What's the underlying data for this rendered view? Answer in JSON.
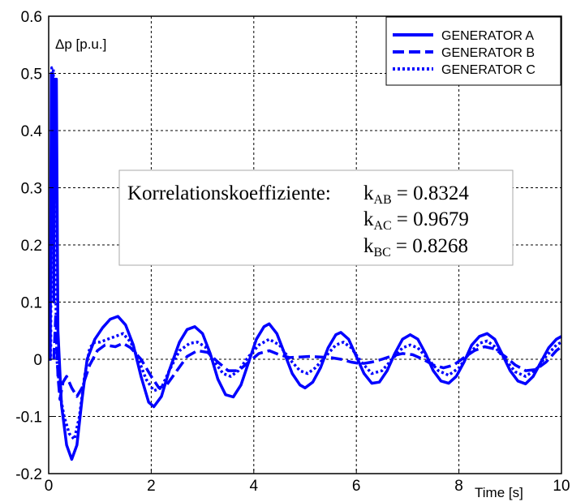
{
  "chart_data": {
    "type": "line",
    "title": "",
    "ylabel": "Δp [p.u.]",
    "xlabel": "Time [s]",
    "xlim": [
      0,
      10
    ],
    "ylim": [
      -0.2,
      0.6
    ],
    "xticks": [
      0,
      2,
      4,
      6,
      8,
      10
    ],
    "yticks": [
      -0.2,
      -0.1,
      0,
      0.1,
      0.2,
      0.3,
      0.4,
      0.5,
      0.6
    ],
    "grid": true,
    "legend_position": "top-right",
    "series": [
      {
        "name": "GENERATOR A",
        "color": "#0000ff",
        "style": "solid",
        "points": [
          [
            0,
            0
          ],
          [
            0.03,
            0
          ],
          [
            0.05,
            0.5
          ],
          [
            0.08,
            0.5
          ],
          [
            0.1,
            0.1
          ],
          [
            0.12,
            0.49
          ],
          [
            0.15,
            0.49
          ],
          [
            0.18,
            0.05
          ],
          [
            0.25,
            -0.08
          ],
          [
            0.35,
            -0.15
          ],
          [
            0.45,
            -0.175
          ],
          [
            0.55,
            -0.15
          ],
          [
            0.65,
            -0.07
          ],
          [
            0.75,
            0.0
          ],
          [
            0.9,
            0.035
          ],
          [
            1.05,
            0.055
          ],
          [
            1.2,
            0.07
          ],
          [
            1.35,
            0.075
          ],
          [
            1.5,
            0.06
          ],
          [
            1.65,
            0.025
          ],
          [
            1.8,
            -0.03
          ],
          [
            1.95,
            -0.075
          ],
          [
            2.05,
            -0.083
          ],
          [
            2.2,
            -0.065
          ],
          [
            2.35,
            -0.02
          ],
          [
            2.55,
            0.03
          ],
          [
            2.7,
            0.052
          ],
          [
            2.85,
            0.057
          ],
          [
            3.0,
            0.045
          ],
          [
            3.15,
            0.01
          ],
          [
            3.3,
            -0.035
          ],
          [
            3.45,
            -0.062
          ],
          [
            3.6,
            -0.066
          ],
          [
            3.75,
            -0.045
          ],
          [
            3.9,
            -0.005
          ],
          [
            4.05,
            0.035
          ],
          [
            4.2,
            0.057
          ],
          [
            4.3,
            0.062
          ],
          [
            4.45,
            0.045
          ],
          [
            4.6,
            0.01
          ],
          [
            4.75,
            -0.025
          ],
          [
            4.9,
            -0.045
          ],
          [
            5.0,
            -0.05
          ],
          [
            5.15,
            -0.04
          ],
          [
            5.3,
            -0.015
          ],
          [
            5.45,
            0.02
          ],
          [
            5.6,
            0.043
          ],
          [
            5.7,
            0.047
          ],
          [
            5.85,
            0.035
          ],
          [
            6.0,
            0.005
          ],
          [
            6.15,
            -0.025
          ],
          [
            6.3,
            -0.042
          ],
          [
            6.45,
            -0.04
          ],
          [
            6.6,
            -0.02
          ],
          [
            6.75,
            0.01
          ],
          [
            6.9,
            0.035
          ],
          [
            7.05,
            0.043
          ],
          [
            7.2,
            0.035
          ],
          [
            7.35,
            0.01
          ],
          [
            7.5,
            -0.02
          ],
          [
            7.65,
            -0.038
          ],
          [
            7.8,
            -0.042
          ],
          [
            7.95,
            -0.03
          ],
          [
            8.1,
            -0.005
          ],
          [
            8.25,
            0.025
          ],
          [
            8.4,
            0.04
          ],
          [
            8.55,
            0.045
          ],
          [
            8.7,
            0.035
          ],
          [
            8.85,
            0.008
          ],
          [
            9.0,
            -0.02
          ],
          [
            9.15,
            -0.038
          ],
          [
            9.3,
            -0.043
          ],
          [
            9.45,
            -0.03
          ],
          [
            9.6,
            -0.005
          ],
          [
            9.75,
            0.02
          ],
          [
            9.9,
            0.035
          ],
          [
            10,
            0.04
          ]
        ]
      },
      {
        "name": "GENERATOR B",
        "color": "#0000ff",
        "style": "dashed",
        "points": [
          [
            0.1,
            0.0
          ],
          [
            0.14,
            0.08
          ],
          [
            0.18,
            -0.03
          ],
          [
            0.22,
            -0.07
          ],
          [
            0.28,
            -0.04
          ],
          [
            0.35,
            -0.03
          ],
          [
            0.45,
            -0.05
          ],
          [
            0.55,
            -0.065
          ],
          [
            0.65,
            -0.05
          ],
          [
            0.8,
            -0.01
          ],
          [
            0.95,
            0.015
          ],
          [
            1.1,
            0.025
          ],
          [
            1.3,
            0.022
          ],
          [
            1.45,
            0.028
          ],
          [
            1.6,
            0.02
          ],
          [
            1.8,
            0.0
          ],
          [
            2.0,
            -0.03
          ],
          [
            2.15,
            -0.05
          ],
          [
            2.3,
            -0.045
          ],
          [
            2.5,
            -0.02
          ],
          [
            2.7,
            0.005
          ],
          [
            2.9,
            0.015
          ],
          [
            3.1,
            0.012
          ],
          [
            3.3,
            -0.005
          ],
          [
            3.5,
            -0.02
          ],
          [
            3.7,
            -0.02
          ],
          [
            3.9,
            -0.005
          ],
          [
            4.1,
            0.01
          ],
          [
            4.3,
            0.015
          ],
          [
            4.5,
            0.008
          ],
          [
            4.7,
            0.003
          ],
          [
            4.9,
            0.004
          ],
          [
            5.1,
            0.005
          ],
          [
            5.3,
            0.004
          ],
          [
            5.5,
            0.003
          ],
          [
            5.7,
            0.0
          ],
          [
            5.9,
            -0.005
          ],
          [
            6.1,
            -0.008
          ],
          [
            6.3,
            -0.005
          ],
          [
            6.5,
            0.0
          ],
          [
            6.7,
            0.006
          ],
          [
            6.9,
            0.01
          ],
          [
            7.1,
            0.008
          ],
          [
            7.3,
            0.0
          ],
          [
            7.5,
            -0.01
          ],
          [
            7.7,
            -0.015
          ],
          [
            7.9,
            -0.01
          ],
          [
            8.1,
            0.003
          ],
          [
            8.3,
            0.015
          ],
          [
            8.5,
            0.022
          ],
          [
            8.7,
            0.018
          ],
          [
            8.9,
            0.005
          ],
          [
            9.1,
            -0.01
          ],
          [
            9.3,
            -0.02
          ],
          [
            9.5,
            -0.018
          ],
          [
            9.7,
            -0.005
          ],
          [
            9.9,
            0.015
          ],
          [
            10,
            0.022
          ]
        ]
      },
      {
        "name": "GENERATOR C",
        "color": "#0000ff",
        "style": "dotted",
        "points": [
          [
            0.0,
            0.0
          ],
          [
            0.04,
            0.0
          ],
          [
            0.06,
            0.51
          ],
          [
            0.09,
            0.51
          ],
          [
            0.12,
            0.2
          ],
          [
            0.16,
            0.0
          ],
          [
            0.22,
            -0.06
          ],
          [
            0.3,
            -0.1
          ],
          [
            0.4,
            -0.13
          ],
          [
            0.5,
            -0.14
          ],
          [
            0.6,
            -0.1
          ],
          [
            0.7,
            -0.03
          ],
          [
            0.8,
            0.02
          ],
          [
            0.9,
            0.03
          ],
          [
            1.0,
            0.03
          ],
          [
            1.15,
            0.035
          ],
          [
            1.3,
            0.04
          ],
          [
            1.45,
            0.045
          ],
          [
            1.6,
            0.03
          ],
          [
            1.75,
            0.0
          ],
          [
            1.9,
            -0.035
          ],
          [
            2.05,
            -0.055
          ],
          [
            2.2,
            -0.05
          ],
          [
            2.35,
            -0.02
          ],
          [
            2.55,
            0.015
          ],
          [
            2.75,
            0.028
          ],
          [
            2.9,
            0.03
          ],
          [
            3.05,
            0.022
          ],
          [
            3.2,
            0.0
          ],
          [
            3.4,
            -0.025
          ],
          [
            3.55,
            -0.03
          ],
          [
            3.7,
            -0.02
          ],
          [
            3.9,
            0.005
          ],
          [
            4.1,
            0.025
          ],
          [
            4.3,
            0.035
          ],
          [
            4.5,
            0.025
          ],
          [
            4.7,
            0.0
          ],
          [
            4.9,
            -0.02
          ],
          [
            5.05,
            -0.025
          ],
          [
            5.2,
            -0.015
          ],
          [
            5.4,
            0.005
          ],
          [
            5.6,
            0.025
          ],
          [
            5.75,
            0.03
          ],
          [
            5.9,
            0.02
          ],
          [
            6.1,
            -0.005
          ],
          [
            6.3,
            -0.025
          ],
          [
            6.5,
            -0.02
          ],
          [
            6.7,
            0.0
          ],
          [
            6.9,
            0.02
          ],
          [
            7.05,
            0.025
          ],
          [
            7.2,
            0.02
          ],
          [
            7.4,
            0.0
          ],
          [
            7.6,
            -0.02
          ],
          [
            7.8,
            -0.028
          ],
          [
            8.0,
            -0.015
          ],
          [
            8.2,
            0.01
          ],
          [
            8.4,
            0.028
          ],
          [
            8.55,
            0.032
          ],
          [
            8.7,
            0.022
          ],
          [
            8.9,
            0.0
          ],
          [
            9.1,
            -0.022
          ],
          [
            9.3,
            -0.03
          ],
          [
            9.5,
            -0.018
          ],
          [
            9.7,
            0.005
          ],
          [
            9.9,
            0.025
          ],
          [
            10,
            0.03
          ]
        ]
      }
    ],
    "annotation": {
      "prefix": "Korrelationskoeffiziente:",
      "lines": [
        {
          "k": "k",
          "sub": "AB",
          "value": "= 0.8324"
        },
        {
          "k": "k",
          "sub": "AC",
          "value": "= 0.9679"
        },
        {
          "k": "k",
          "sub": "BC",
          "value": "= 0.8268"
        }
      ]
    }
  }
}
